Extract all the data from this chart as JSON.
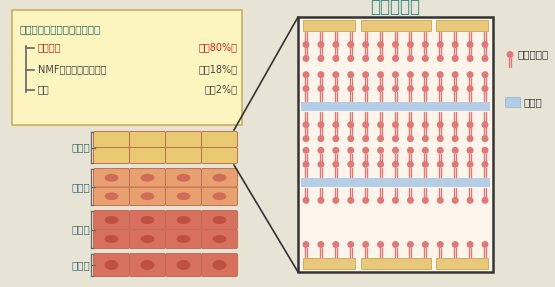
{
  "bg_color": "#e8e4d5",
  "title_lamella": "ラメラ構造",
  "title_color": "#3a8888",
  "box_bg": "#fdf5c0",
  "box_border": "#c8b060",
  "info_title": "肌の水分を保つ役割への寄与",
  "info_title_color": "#2a6868",
  "items": [
    {
      "label": "セラミド",
      "label_color": "#cc2222",
      "pct": "（約80%）",
      "pct_color": "#cc2222"
    },
    {
      "label": "NMF（天然保湿因子）",
      "label_color": "#444444",
      "pct": "（約18%）",
      "pct_color": "#444444"
    },
    {
      "label": "皮脂",
      "label_color": "#444444",
      "pct": "（約2%）",
      "pct_color": "#444444"
    }
  ],
  "ceramide_color": "#e07878",
  "water_color": "#a8c8e8",
  "flat_color": "#e8c87a",
  "flat_border": "#c8a850",
  "lamella_bg": "#fdf5ec",
  "lamella_border": "#333333",
  "layer_label_color": "#3a6a6a",
  "cell_border": "#c07050",
  "layer_defs": [
    {
      "name": "角質層",
      "color": "#e8c870",
      "nucleus": null,
      "rows": 2,
      "cols": 4
    },
    {
      "name": "顆粒層",
      "color": "#e8a070",
      "nucleus": "#c86050",
      "rows": 2,
      "cols": 4
    },
    {
      "name": "有棘層",
      "color": "#d87060",
      "nucleus": "#b84838",
      "rows": 2,
      "cols": 4
    },
    {
      "name": "基底層",
      "color": "#d87060",
      "nucleus": "#b84838",
      "rows": 1,
      "cols": 4
    }
  ]
}
